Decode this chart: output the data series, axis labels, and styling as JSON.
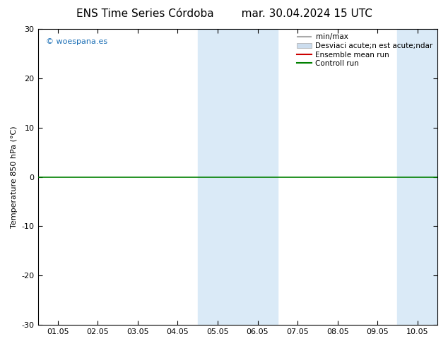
{
  "title_left": "ENS Time Series Córdoba",
  "title_right": "mar. 30.04.2024 15 UTC",
  "ylabel": "Temperature 850 hPa (°C)",
  "ylim": [
    -30,
    30
  ],
  "yticks": [
    -30,
    -20,
    -10,
    0,
    10,
    20,
    30
  ],
  "shaded_regions": [
    {
      "xstart": 3.5,
      "xend": 4.5,
      "color": "#daeaf7"
    },
    {
      "xstart": 4.5,
      "xend": 5.5,
      "color": "#daeaf7"
    },
    {
      "xstart": 8.5,
      "xend": 9.5,
      "color": "#daeaf7"
    },
    {
      "xstart": 9.5,
      "xend": 10.5,
      "color": "#daeaf7"
    }
  ],
  "hline_y": 0,
  "hline_color": "#008000",
  "hline_lw": 1.2,
  "watermark": "© woespana.es",
  "watermark_color": "#1a6eb5",
  "bg_color": "#ffffff",
  "tick_labels": [
    "01.05",
    "02.05",
    "03.05",
    "04.05",
    "05.05",
    "06.05",
    "07.05",
    "08.05",
    "09.05",
    "10.05"
  ],
  "legend_min_max_color": "#aaaaaa",
  "legend_std_color": "#ccddee",
  "legend_mean_color": "#cc0000",
  "legend_ctrl_color": "#008000",
  "title_fontsize": 11,
  "label_fontsize": 8,
  "tick_fontsize": 8,
  "legend_fontsize": 7.5
}
